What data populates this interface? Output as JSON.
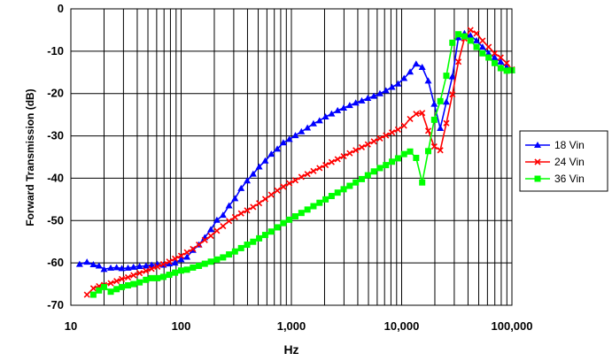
{
  "chart_data": {
    "type": "line",
    "xlabel": "Hz",
    "ylabel": "Forward Transmission (dB)",
    "x_scale": "log",
    "xlim": [
      10,
      100000
    ],
    "ylim": [
      -70,
      0
    ],
    "y_ticks": [
      0,
      -10,
      -20,
      -30,
      -40,
      -50,
      -60,
      -70
    ],
    "y_tick_labels": [
      "0",
      "-10",
      "-20",
      "-30",
      "-40",
      "-50",
      "-60",
      "-70"
    ],
    "x_ticks": [
      10,
      100,
      1000,
      10000,
      100000
    ],
    "x_tick_labels": [
      "10",
      "100",
      "1,000",
      "10,000",
      "100,000"
    ],
    "grid": true,
    "legend_position": "right",
    "series": [
      {
        "name": "18 Vin",
        "color": "#0000ff",
        "marker": "triangle",
        "x": [
          12,
          14,
          16,
          18,
          20,
          23,
          26,
          29,
          33,
          37,
          42,
          48,
          54,
          61,
          69,
          78,
          88,
          100,
          113,
          128,
          145,
          164,
          186,
          211,
          240,
          272,
          308,
          350,
          397,
          450,
          510,
          579,
          657,
          745,
          845,
          958,
          1087,
          1233,
          1399,
          1586,
          1800,
          2042,
          2316,
          2627,
          2980,
          3381,
          3835,
          4350,
          4935,
          5598,
          6351,
          7205,
          8173,
          9271,
          10517,
          11931,
          13534,
          15353,
          17417,
          19757,
          22413,
          25425,
          28842,
          32719,
          37116,
          42104,
          47763,
          54182,
          61464,
          69724,
          79095,
          89724,
          100000
        ],
        "y": [
          -60.3,
          -59.8,
          -60.4,
          -60.7,
          -61.5,
          -61.2,
          -61.1,
          -61.3,
          -61.2,
          -61.0,
          -60.8,
          -60.7,
          -60.5,
          -60.3,
          -60.5,
          -60.2,
          -60.0,
          -59.2,
          -58.6,
          -57.0,
          -55.7,
          -54.0,
          -52.1,
          -49.9,
          -48.7,
          -46.5,
          -44.8,
          -42.4,
          -40.6,
          -39.0,
          -37.3,
          -35.9,
          -34.3,
          -33.1,
          -31.6,
          -30.8,
          -29.9,
          -29.0,
          -28.1,
          -27.1,
          -26.4,
          -25.5,
          -24.8,
          -24.0,
          -23.4,
          -22.8,
          -22.2,
          -21.7,
          -21.1,
          -20.6,
          -20.0,
          -19.3,
          -18.5,
          -17.7,
          -16.4,
          -14.9,
          -13.0,
          -13.8,
          -17.0,
          -22.5,
          -28.2,
          -22.0,
          -16.0,
          -6.8,
          -5.8,
          -6.3,
          -7.5,
          -9.0,
          -10.5,
          -11.5,
          -12.5,
          -13.8,
          -14.5
        ]
      },
      {
        "name": "24 Vin",
        "color": "#ff0000",
        "marker": "x",
        "x": [
          14,
          16,
          18,
          20,
          23,
          26,
          29,
          33,
          37,
          42,
          48,
          54,
          61,
          69,
          78,
          88,
          100,
          113,
          128,
          145,
          164,
          186,
          211,
          240,
          272,
          308,
          350,
          397,
          450,
          510,
          579,
          657,
          745,
          845,
          958,
          1087,
          1233,
          1399,
          1586,
          1800,
          2042,
          2316,
          2627,
          2980,
          3381,
          3835,
          4350,
          4935,
          5598,
          6351,
          7205,
          8173,
          9271,
          10517,
          11931,
          13534,
          15353,
          17417,
          19757,
          22413,
          25425,
          28842,
          32719,
          37116,
          42104,
          47763,
          54182,
          61464,
          69724,
          79095,
          89724,
          100000
        ],
        "y": [
          -67.5,
          -66.0,
          -65.5,
          -65.2,
          -64.8,
          -64.3,
          -63.8,
          -63.4,
          -62.9,
          -62.4,
          -61.9,
          -61.4,
          -60.9,
          -60.3,
          -59.7,
          -59.0,
          -58.3,
          -57.5,
          -56.7,
          -55.7,
          -54.6,
          -53.6,
          -52.4,
          -51.3,
          -50.1,
          -49.2,
          -48.3,
          -47.6,
          -46.8,
          -45.9,
          -44.9,
          -43.9,
          -42.9,
          -42.0,
          -41.2,
          -40.5,
          -39.7,
          -39.0,
          -38.3,
          -37.6,
          -36.9,
          -36.2,
          -35.5,
          -34.8,
          -34.1,
          -33.4,
          -32.7,
          -32.0,
          -31.3,
          -30.6,
          -29.9,
          -29.2,
          -28.5,
          -27.6,
          -26.0,
          -24.8,
          -24.6,
          -28.8,
          -32.5,
          -33.4,
          -27.0,
          -20.2,
          -12.5,
          -7.0,
          -5.0,
          -5.8,
          -7.5,
          -9.0,
          -10.5,
          -11.5,
          -12.8,
          -14.3
        ]
      },
      {
        "name": "36 Vin",
        "color": "#00ff00",
        "marker": "square",
        "x": [
          16,
          18,
          20,
          23,
          26,
          29,
          33,
          37,
          42,
          48,
          54,
          61,
          69,
          78,
          88,
          100,
          113,
          128,
          145,
          164,
          186,
          211,
          240,
          272,
          308,
          350,
          397,
          450,
          510,
          579,
          657,
          745,
          845,
          958,
          1087,
          1233,
          1399,
          1586,
          1800,
          2042,
          2316,
          2627,
          2980,
          3381,
          3835,
          4350,
          4935,
          5598,
          6351,
          7205,
          8173,
          9271,
          10517,
          11931,
          13534,
          15353,
          17417,
          19757,
          22413,
          25425,
          28842,
          32719,
          37116,
          42104,
          47763,
          54182,
          61464,
          69724,
          79095,
          89724,
          100000
        ],
        "y": [
          -67.5,
          -66.5,
          -65.7,
          -66.8,
          -66.2,
          -65.7,
          -65.3,
          -65.0,
          -64.6,
          -64.0,
          -63.6,
          -63.6,
          -63.3,
          -62.8,
          -62.3,
          -61.8,
          -61.6,
          -61.1,
          -60.7,
          -60.2,
          -59.7,
          -59.2,
          -58.7,
          -58.0,
          -57.3,
          -56.5,
          -55.7,
          -55.0,
          -54.2,
          -53.4,
          -52.6,
          -51.6,
          -50.6,
          -49.8,
          -49.0,
          -48.2,
          -47.4,
          -46.6,
          -45.8,
          -45.0,
          -44.2,
          -43.4,
          -42.6,
          -41.8,
          -41.0,
          -40.2,
          -39.3,
          -38.4,
          -37.6,
          -36.9,
          -36.1,
          -35.3,
          -34.3,
          -33.7,
          -35.2,
          -41.0,
          -33.6,
          -26.2,
          -21.8,
          -15.8,
          -8.0,
          -6.0,
          -6.5,
          -7.5,
          -9.0,
          -10.5,
          -11.5,
          -12.8,
          -14.0,
          -14.6,
          -14.5
        ]
      }
    ]
  }
}
